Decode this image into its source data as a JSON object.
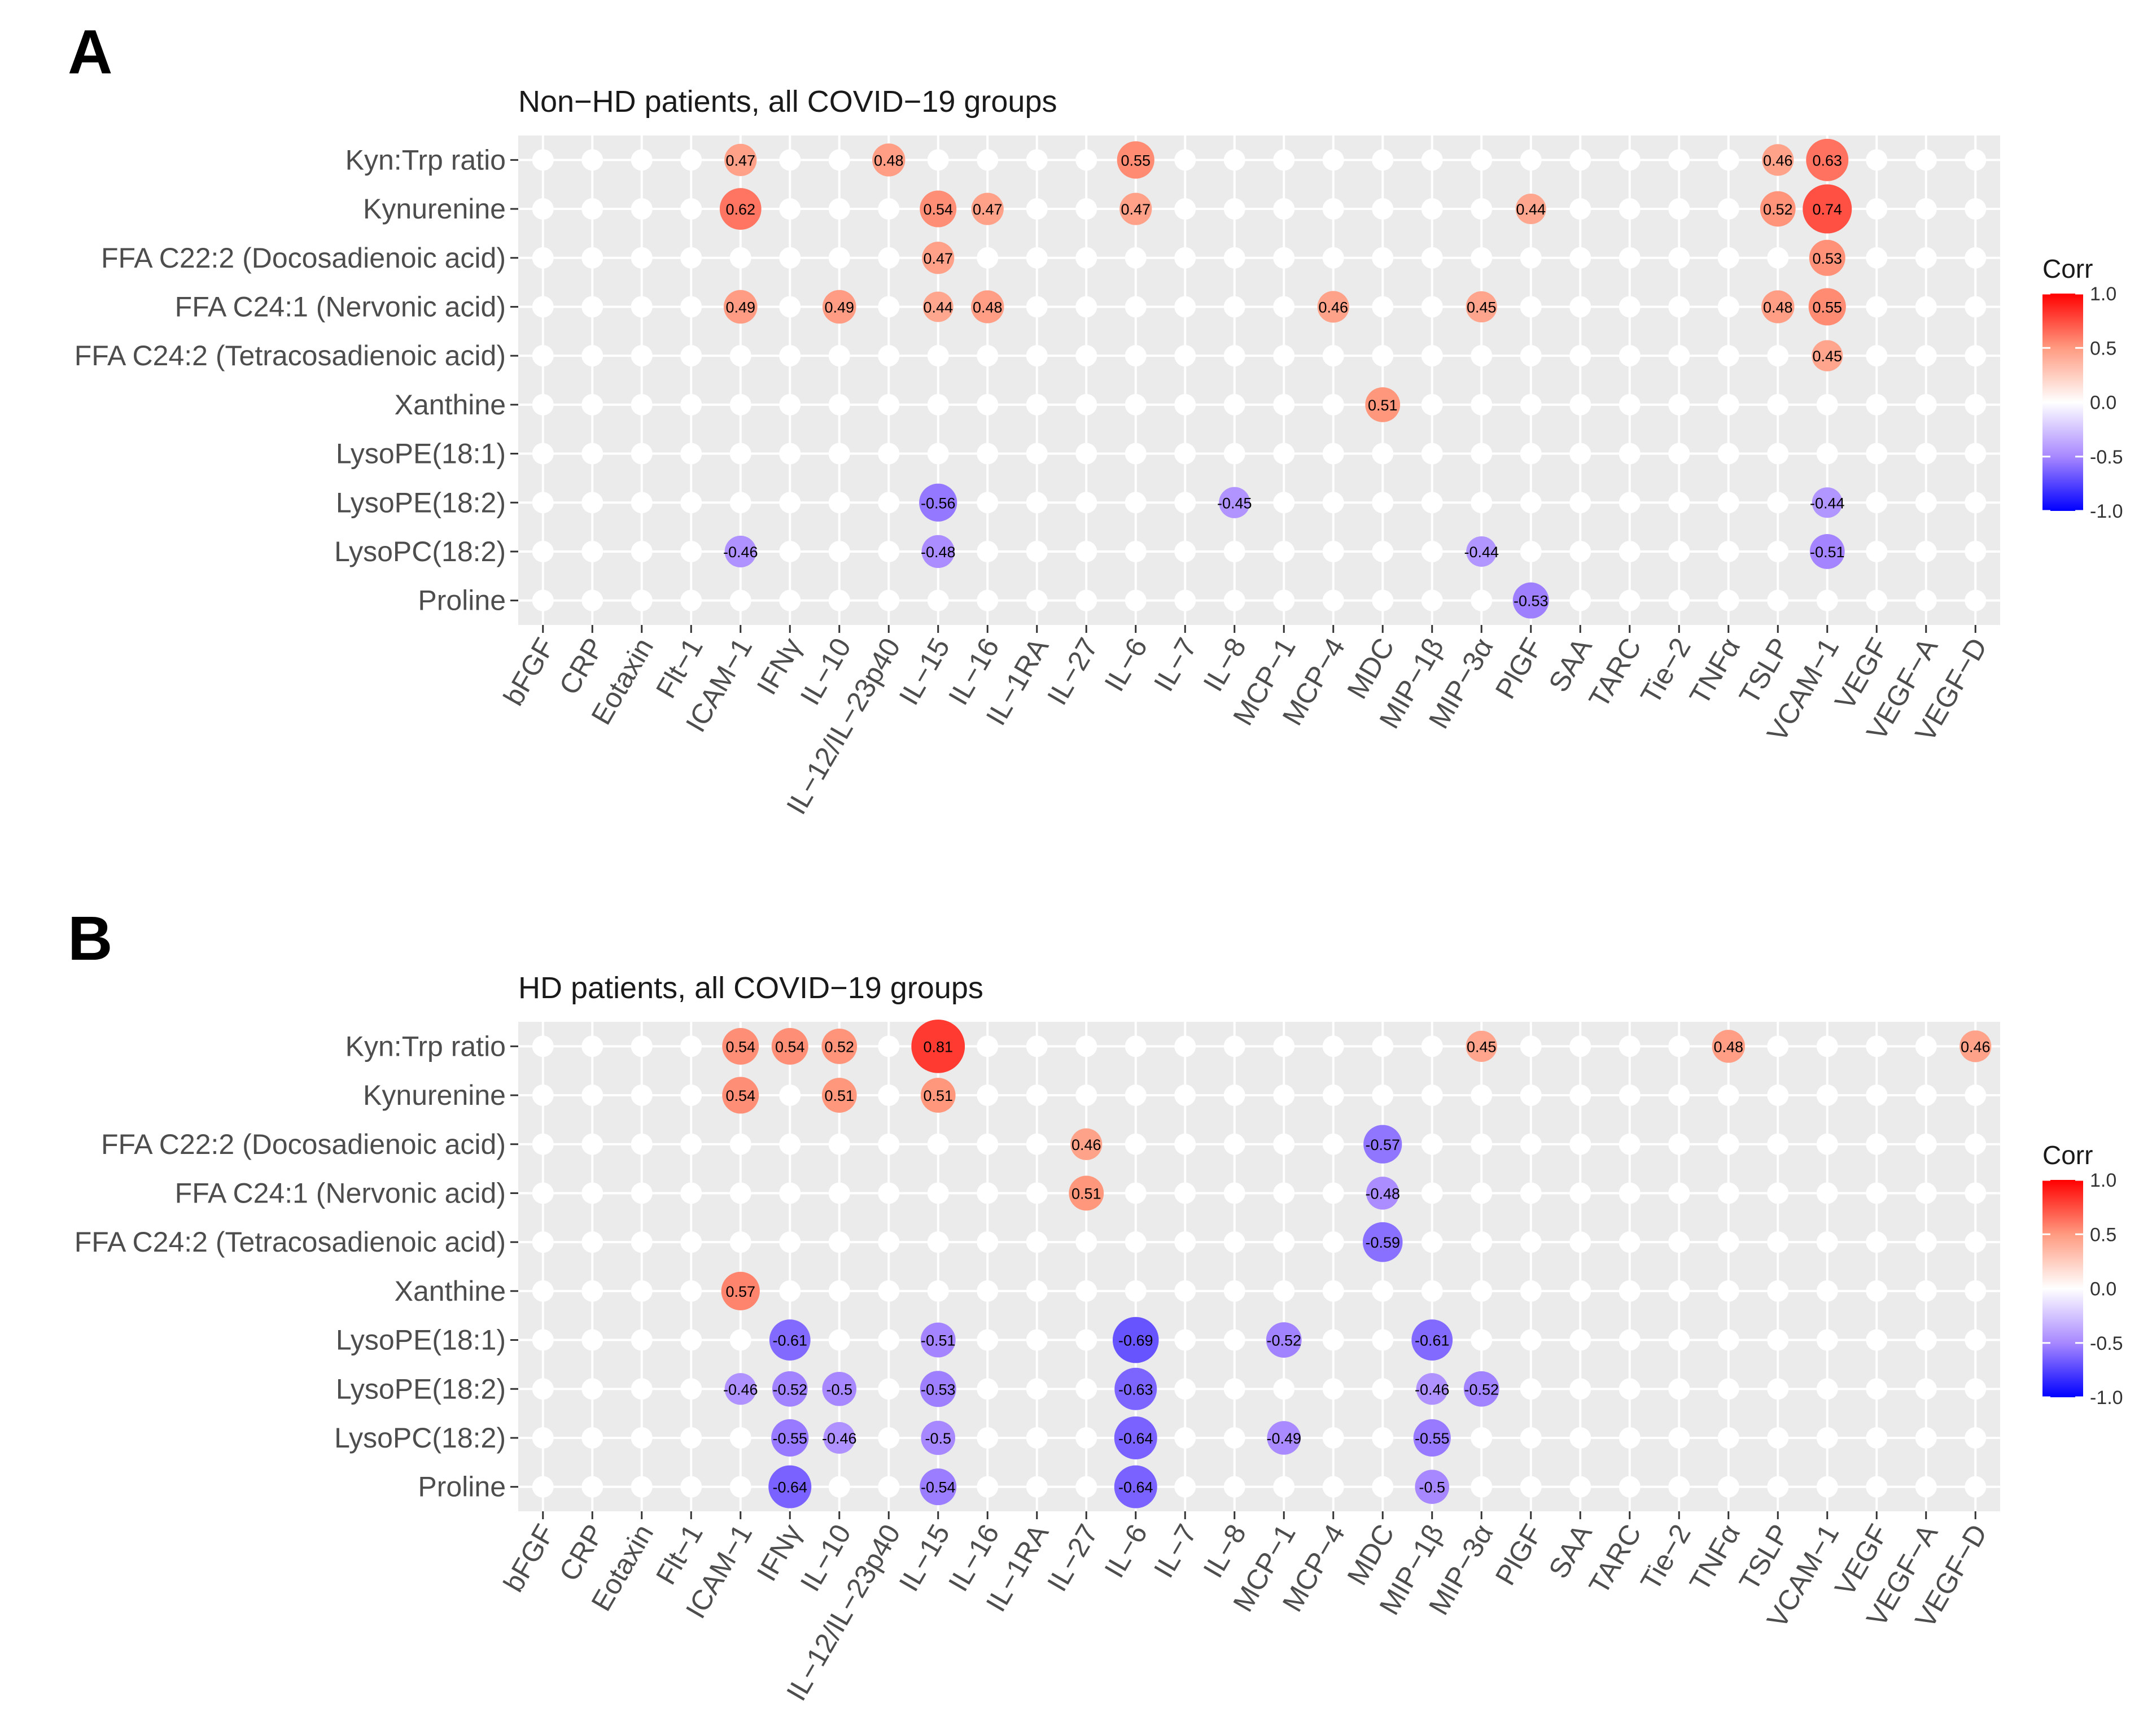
{
  "chart_data": [
    {
      "type": "heatmap",
      "panel_label": "A",
      "title": "Non−HD patients, all COVID−19 groups",
      "rows": [
        "Kyn:Trp ratio",
        "Kynurenine",
        "FFA C22:2 (Docosadienoic acid)",
        "FFA C24:1 (Nervonic acid)",
        "FFA C24:2 (Tetracosadienoic acid)",
        "Xanthine",
        "LysoPE(18:1)",
        "LysoPE(18:2)",
        "LysoPC(18:2)",
        "Proline"
      ],
      "columns": [
        "bFGF",
        "CRP",
        "Eotaxin",
        "Flt−1",
        "ICAM−1",
        "IFNγ",
        "IL−10",
        "IL−12/IL−23p40",
        "IL−15",
        "IL−16",
        "IL−1RA",
        "IL−27",
        "IL−6",
        "IL−7",
        "IL−8",
        "MCP−1",
        "MCP−4",
        "MDC",
        "MIP−1β",
        "MIP−3α",
        "PlGF",
        "SAA",
        "TARC",
        "Tie−2",
        "TNFα",
        "TSLP",
        "VCAM−1",
        "VEGF",
        "VEGF−A",
        "VEGF−D"
      ],
      "cells": [
        {
          "row": "Kyn:Trp ratio",
          "col": "ICAM−1",
          "value": 0.47,
          "label": "0.47"
        },
        {
          "row": "Kyn:Trp ratio",
          "col": "IL−12/IL−23p40",
          "value": 0.48,
          "label": "0.48"
        },
        {
          "row": "Kyn:Trp ratio",
          "col": "IL−6",
          "value": 0.55,
          "label": "0.55"
        },
        {
          "row": "Kyn:Trp ratio",
          "col": "TSLP",
          "value": 0.46,
          "label": "0.46"
        },
        {
          "row": "Kyn:Trp ratio",
          "col": "VCAM−1",
          "value": 0.63,
          "label": "0.63"
        },
        {
          "row": "Kynurenine",
          "col": "ICAM−1",
          "value": 0.62,
          "label": "0.62"
        },
        {
          "row": "Kynurenine",
          "col": "IL−15",
          "value": 0.54,
          "label": "0.54"
        },
        {
          "row": "Kynurenine",
          "col": "IL−16",
          "value": 0.47,
          "label": "0.47"
        },
        {
          "row": "Kynurenine",
          "col": "IL−6",
          "value": 0.47,
          "label": "0.47"
        },
        {
          "row": "Kynurenine",
          "col": "PlGF",
          "value": 0.44,
          "label": "0.44"
        },
        {
          "row": "Kynurenine",
          "col": "TSLP",
          "value": 0.52,
          "label": "0.52"
        },
        {
          "row": "Kynurenine",
          "col": "VCAM−1",
          "value": 0.74,
          "label": "0.74"
        },
        {
          "row": "FFA C22:2 (Docosadienoic acid)",
          "col": "IL−15",
          "value": 0.47,
          "label": "0.47"
        },
        {
          "row": "FFA C22:2 (Docosadienoic acid)",
          "col": "VCAM−1",
          "value": 0.53,
          "label": "0.53"
        },
        {
          "row": "FFA C24:1 (Nervonic acid)",
          "col": "ICAM−1",
          "value": 0.49,
          "label": "0.49"
        },
        {
          "row": "FFA C24:1 (Nervonic acid)",
          "col": "IL−10",
          "value": 0.49,
          "label": "0.49"
        },
        {
          "row": "FFA C24:1 (Nervonic acid)",
          "col": "IL−15",
          "value": 0.44,
          "label": "0.44"
        },
        {
          "row": "FFA C24:1 (Nervonic acid)",
          "col": "IL−16",
          "value": 0.48,
          "label": "0.48"
        },
        {
          "row": "FFA C24:1 (Nervonic acid)",
          "col": "MCP−4",
          "value": 0.46,
          "label": "0.46"
        },
        {
          "row": "FFA C24:1 (Nervonic acid)",
          "col": "MIP−3α",
          "value": 0.45,
          "label": "0.45"
        },
        {
          "row": "FFA C24:1 (Nervonic acid)",
          "col": "TSLP",
          "value": 0.48,
          "label": "0.48"
        },
        {
          "row": "FFA C24:1 (Nervonic acid)",
          "col": "VCAM−1",
          "value": 0.55,
          "label": "0.55"
        },
        {
          "row": "FFA C24:2 (Tetracosadienoic acid)",
          "col": "VCAM−1",
          "value": 0.45,
          "label": "0.45"
        },
        {
          "row": "Xanthine",
          "col": "MDC",
          "value": 0.51,
          "label": "0.51"
        },
        {
          "row": "LysoPE(18:2)",
          "col": "IL−15",
          "value": -0.56,
          "label": "-0.56"
        },
        {
          "row": "LysoPE(18:2)",
          "col": "IL−8",
          "value": -0.45,
          "label": "-0.45"
        },
        {
          "row": "LysoPE(18:2)",
          "col": "VCAM−1",
          "value": -0.44,
          "label": "-0.44"
        },
        {
          "row": "LysoPC(18:2)",
          "col": "ICAM−1",
          "value": -0.46,
          "label": "-0.46"
        },
        {
          "row": "LysoPC(18:2)",
          "col": "IL−15",
          "value": -0.48,
          "label": "-0.48"
        },
        {
          "row": "LysoPC(18:2)",
          "col": "MIP−3α",
          "value": -0.44,
          "label": "-0.44"
        },
        {
          "row": "LysoPC(18:2)",
          "col": "VCAM−1",
          "value": -0.51,
          "label": "-0.51"
        },
        {
          "row": "Proline",
          "col": "PlGF",
          "value": -0.53,
          "label": "-0.53"
        }
      ],
      "legend": {
        "title": "Corr",
        "ticks": [
          "1.0",
          "0.5",
          "0.0",
          "-0.5",
          "-1.0"
        ],
        "range": [
          -1,
          1
        ]
      }
    },
    {
      "type": "heatmap",
      "panel_label": "B",
      "title": "HD patients, all COVID−19 groups",
      "rows": [
        "Kyn:Trp ratio",
        "Kynurenine",
        "FFA C22:2 (Docosadienoic acid)",
        "FFA C24:1 (Nervonic acid)",
        "FFA C24:2 (Tetracosadienoic acid)",
        "Xanthine",
        "LysoPE(18:1)",
        "LysoPE(18:2)",
        "LysoPC(18:2)",
        "Proline"
      ],
      "columns": [
        "bFGF",
        "CRP",
        "Eotaxin",
        "Flt−1",
        "ICAM−1",
        "IFNγ",
        "IL−10",
        "IL−12/IL−23p40",
        "IL−15",
        "IL−16",
        "IL−1RA",
        "IL−27",
        "IL−6",
        "IL−7",
        "IL−8",
        "MCP−1",
        "MCP−4",
        "MDC",
        "MIP−1β",
        "MIP−3α",
        "PlGF",
        "SAA",
        "TARC",
        "Tie−2",
        "TNFα",
        "TSLP",
        "VCAM−1",
        "VEGF",
        "VEGF−A",
        "VEGF−D"
      ],
      "cells": [
        {
          "row": "Kyn:Trp ratio",
          "col": "ICAM−1",
          "value": 0.54,
          "label": "0.54"
        },
        {
          "row": "Kyn:Trp ratio",
          "col": "IFNγ",
          "value": 0.54,
          "label": "0.54"
        },
        {
          "row": "Kyn:Trp ratio",
          "col": "IL−10",
          "value": 0.52,
          "label": "0.52"
        },
        {
          "row": "Kyn:Trp ratio",
          "col": "IL−15",
          "value": 0.81,
          "label": "0.81"
        },
        {
          "row": "Kyn:Trp ratio",
          "col": "MIP−3α",
          "value": 0.45,
          "label": "0.45"
        },
        {
          "row": "Kyn:Trp ratio",
          "col": "TNFα",
          "value": 0.48,
          "label": "0.48"
        },
        {
          "row": "Kyn:Trp ratio",
          "col": "VEGF−D",
          "value": 0.46,
          "label": "0.46"
        },
        {
          "row": "Kynurenine",
          "col": "ICAM−1",
          "value": 0.54,
          "label": "0.54"
        },
        {
          "row": "Kynurenine",
          "col": "IL−10",
          "value": 0.51,
          "label": "0.51"
        },
        {
          "row": "Kynurenine",
          "col": "IL−15",
          "value": 0.51,
          "label": "0.51"
        },
        {
          "row": "FFA C22:2 (Docosadienoic acid)",
          "col": "IL−27",
          "value": 0.46,
          "label": "0.46"
        },
        {
          "row": "FFA C22:2 (Docosadienoic acid)",
          "col": "MDC",
          "value": -0.57,
          "label": "-0.57"
        },
        {
          "row": "FFA C24:1 (Nervonic acid)",
          "col": "IL−27",
          "value": 0.51,
          "label": "0.51"
        },
        {
          "row": "FFA C24:1 (Nervonic acid)",
          "col": "MDC",
          "value": -0.48,
          "label": "-0.48"
        },
        {
          "row": "FFA C24:2 (Tetracosadienoic acid)",
          "col": "MDC",
          "value": -0.59,
          "label": "-0.59"
        },
        {
          "row": "Xanthine",
          "col": "ICAM−1",
          "value": 0.57,
          "label": "0.57"
        },
        {
          "row": "LysoPE(18:1)",
          "col": "IFNγ",
          "value": -0.61,
          "label": "-0.61"
        },
        {
          "row": "LysoPE(18:1)",
          "col": "IL−15",
          "value": -0.51,
          "label": "-0.51"
        },
        {
          "row": "LysoPE(18:1)",
          "col": "IL−6",
          "value": -0.69,
          "label": "-0.69"
        },
        {
          "row": "LysoPE(18:1)",
          "col": "MCP−1",
          "value": -0.52,
          "label": "-0.52"
        },
        {
          "row": "LysoPE(18:1)",
          "col": "MIP−1β",
          "value": -0.61,
          "label": "-0.61"
        },
        {
          "row": "LysoPE(18:2)",
          "col": "ICAM−1",
          "value": -0.46,
          "label": "-0.46"
        },
        {
          "row": "LysoPE(18:2)",
          "col": "IFNγ",
          "value": -0.52,
          "label": "-0.52"
        },
        {
          "row": "LysoPE(18:2)",
          "col": "IL−10",
          "value": -0.5,
          "label": "-0.5"
        },
        {
          "row": "LysoPE(18:2)",
          "col": "IL−15",
          "value": -0.53,
          "label": "-0.53"
        },
        {
          "row": "LysoPE(18:2)",
          "col": "IL−6",
          "value": -0.63,
          "label": "-0.63"
        },
        {
          "row": "LysoPE(18:2)",
          "col": "MIP−1β",
          "value": -0.46,
          "label": "-0.46"
        },
        {
          "row": "LysoPE(18:2)",
          "col": "MIP−3α",
          "value": -0.52,
          "label": "-0.52"
        },
        {
          "row": "LysoPC(18:2)",
          "col": "IFNγ",
          "value": -0.55,
          "label": "-0.55"
        },
        {
          "row": "LysoPC(18:2)",
          "col": "IL−10",
          "value": -0.46,
          "label": "-0.46"
        },
        {
          "row": "LysoPC(18:2)",
          "col": "IL−15",
          "value": -0.5,
          "label": "-0.5"
        },
        {
          "row": "LysoPC(18:2)",
          "col": "IL−6",
          "value": -0.64,
          "label": "-0.64"
        },
        {
          "row": "LysoPC(18:2)",
          "col": "MCP−1",
          "value": -0.49,
          "label": "-0.49"
        },
        {
          "row": "LysoPC(18:2)",
          "col": "MIP−1β",
          "value": -0.55,
          "label": "-0.55"
        },
        {
          "row": "Proline",
          "col": "IFNγ",
          "value": -0.64,
          "label": "-0.64"
        },
        {
          "row": "Proline",
          "col": "IL−15",
          "value": -0.54,
          "label": "-0.54"
        },
        {
          "row": "Proline",
          "col": "IL−6",
          "value": -0.64,
          "label": "-0.64"
        },
        {
          "row": "Proline",
          "col": "MIP−1β",
          "value": -0.5,
          "label": "-0.5"
        }
      ],
      "legend": {
        "title": "Corr",
        "ticks": [
          "1.0",
          "0.5",
          "0.0",
          "-0.5",
          "-1.0"
        ],
        "range": [
          -1,
          1
        ]
      }
    }
  ]
}
